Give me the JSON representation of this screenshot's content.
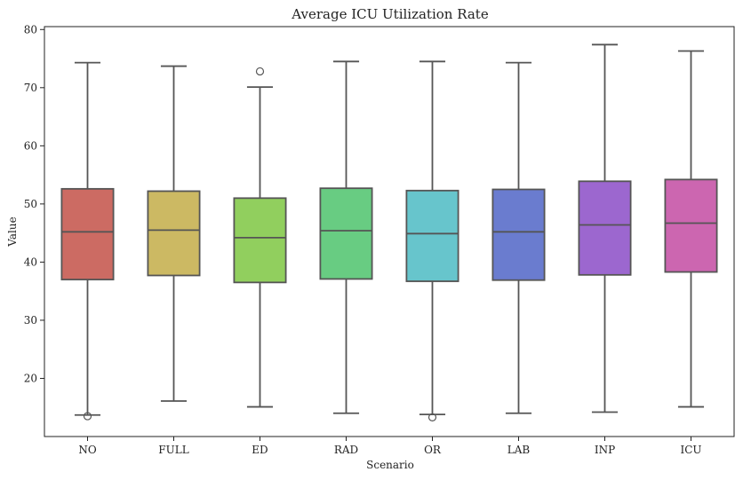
{
  "chart_data": {
    "type": "box",
    "title": "Average ICU Utilization Rate",
    "xlabel": "Scenario",
    "ylabel": "Value",
    "ylim": [
      10,
      80.5
    ],
    "yticks": [
      20,
      30,
      40,
      50,
      60,
      70,
      80
    ],
    "grid": false,
    "categories": [
      "NO",
      "FULL",
      "ED",
      "RAD",
      "OR",
      "LAB",
      "INP",
      "ICU"
    ],
    "colors": [
      "#cc6b63",
      "#ccb963",
      "#91cf5e",
      "#68cc82",
      "#67c5cc",
      "#6a7ccf",
      "#9c67cf",
      "#cc66b0"
    ],
    "boxes": [
      {
        "min": 13.7,
        "q1": 37.0,
        "median": 45.2,
        "q3": 52.6,
        "max": 74.3,
        "outliers": [
          13.5
        ]
      },
      {
        "min": 16.1,
        "q1": 37.7,
        "median": 45.5,
        "q3": 52.2,
        "max": 73.7,
        "outliers": []
      },
      {
        "min": 15.1,
        "q1": 36.5,
        "median": 44.2,
        "q3": 51.0,
        "max": 70.1,
        "outliers": [
          72.8
        ]
      },
      {
        "min": 14.0,
        "q1": 37.1,
        "median": 45.4,
        "q3": 52.7,
        "max": 74.5,
        "outliers": []
      },
      {
        "min": 13.8,
        "q1": 36.7,
        "median": 44.9,
        "q3": 52.3,
        "max": 74.5,
        "outliers": [
          13.3
        ]
      },
      {
        "min": 14.0,
        "q1": 36.9,
        "median": 45.2,
        "q3": 52.5,
        "max": 74.3,
        "outliers": []
      },
      {
        "min": 14.2,
        "q1": 37.8,
        "median": 46.4,
        "q3": 53.9,
        "max": 77.4,
        "outliers": []
      },
      {
        "min": 15.1,
        "q1": 38.3,
        "median": 46.7,
        "q3": 54.2,
        "max": 76.3,
        "outliers": []
      }
    ]
  }
}
